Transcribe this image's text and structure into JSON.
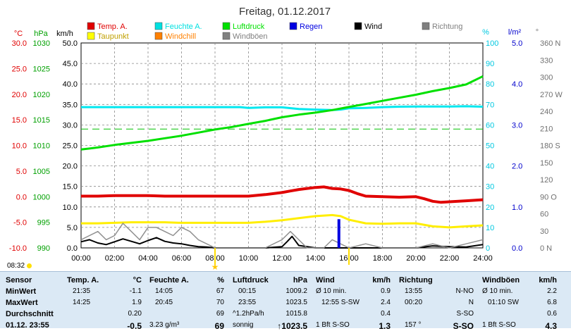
{
  "chart_data": {
    "type": "line",
    "title": "Freitag, 01.12.2017",
    "x_ticks": [
      "00:00",
      "02:00",
      "04:00",
      "06:00",
      "08:00",
      "10:00",
      "12:00",
      "14:00",
      "16:00",
      "18:00",
      "20:00",
      "22:00",
      "24:00"
    ],
    "xlim": [
      "00:00",
      "24:00"
    ],
    "axes": {
      "temp": {
        "label": "°C",
        "ticks": [
          "30.0",
          "25.0",
          "20.0",
          "15.0",
          "10.0",
          "5.0",
          "0.0",
          "-5.0",
          "-10.0"
        ],
        "range": [
          -10,
          30
        ],
        "color": "#e00000"
      },
      "pressure": {
        "label": "hPa",
        "ticks": [
          "1030",
          "1025",
          "1020",
          "1015",
          "1010",
          "1005",
          "1000",
          "995",
          "990"
        ],
        "range": [
          990,
          1030
        ],
        "color": "#00a000"
      },
      "wind": {
        "label": "km/h",
        "ticks": [
          "50.0",
          "45.0",
          "40.0",
          "35.0",
          "30.0",
          "25.0",
          "20.0",
          "15.0",
          "10.0",
          "5.0",
          "0.0"
        ],
        "range": [
          0,
          50
        ],
        "color": "#000000"
      },
      "humidity": {
        "label": "%",
        "ticks": [
          "100",
          "90",
          "80",
          "70",
          "60",
          "50",
          "40",
          "30",
          "20",
          "10",
          "0"
        ],
        "range": [
          0,
          100
        ],
        "color": "#00c8e0"
      },
      "rain": {
        "label": "l/m²",
        "ticks": [
          "5.0",
          "4.0",
          "3.0",
          "2.0",
          "1.0",
          "0.0"
        ],
        "range": [
          0,
          5
        ],
        "color": "#0000cc"
      },
      "direction": {
        "label": "°",
        "ticks": [
          "360 N",
          "330",
          "300",
          "270 W",
          "240",
          "210",
          "180 S",
          "150",
          "120",
          "90 O",
          "60",
          "30",
          "0 N"
        ],
        "range": [
          0,
          360
        ],
        "color": "#707070"
      }
    },
    "legend": [
      {
        "name": "Temp. A.",
        "color": "#e00000"
      },
      {
        "name": "Feuchte A.",
        "color": "#00e0e0"
      },
      {
        "name": "Luftdruck",
        "color": "#00e000"
      },
      {
        "name": "Regen",
        "color": "#0000e0"
      },
      {
        "name": "Wind",
        "color": "#000000"
      },
      {
        "name": "Richtung",
        "color": "#808080"
      },
      {
        "name": "Taupunkt",
        "color": "#ffff00"
      },
      {
        "name": "Windchill",
        "color": "#ff8000"
      },
      {
        "name": "Windböen",
        "color": "#808080"
      }
    ],
    "series": [
      {
        "name": "Temp. A.",
        "axis": "temp",
        "x": [
          0,
          1,
          2,
          3,
          4,
          5,
          6,
          7,
          8,
          9,
          10,
          11,
          12,
          12.5,
          13,
          13.5,
          14,
          14.5,
          15,
          15.5,
          16,
          16.5,
          17,
          18,
          19,
          20,
          20.5,
          21,
          21.5,
          22,
          23,
          24
        ],
        "y": [
          0.1,
          0.1,
          0.2,
          0.2,
          0.2,
          0.1,
          0.1,
          0.1,
          0.1,
          0.1,
          0.1,
          0.4,
          0.8,
          1.1,
          1.4,
          1.6,
          1.8,
          1.9,
          1.6,
          1.5,
          1.2,
          0.6,
          0.1,
          0.0,
          -0.1,
          0.0,
          -0.4,
          -0.9,
          -1.1,
          -1.0,
          -0.8,
          -0.6
        ]
      },
      {
        "name": "Taupunkt",
        "axis": "temp",
        "x": [
          0,
          1,
          2,
          3,
          4,
          5,
          6,
          7,
          8,
          9,
          10,
          11,
          12,
          13,
          14,
          15,
          15.5,
          16,
          17,
          18,
          19,
          20,
          21,
          22,
          23,
          24
        ],
        "y": [
          -5.2,
          -5.2,
          -5.1,
          -5.0,
          -5.0,
          -5.0,
          -5.1,
          -5.1,
          -5.1,
          -5.1,
          -5.1,
          -4.9,
          -4.6,
          -4.2,
          -3.8,
          -3.6,
          -3.8,
          -4.5,
          -5.2,
          -5.3,
          -5.2,
          -5.2,
          -5.8,
          -6.0,
          -5.8,
          -5.6
        ]
      },
      {
        "name": "Feuchte A.",
        "axis": "humidity",
        "x": [
          0,
          2,
          4,
          6,
          8,
          9.5,
          10,
          11,
          12,
          13,
          14,
          15,
          15.5,
          16,
          17,
          18,
          19,
          20,
          21,
          22,
          23,
          24
        ],
        "y": [
          68.7,
          68.7,
          68.7,
          68.7,
          68.7,
          68.7,
          68.3,
          68.6,
          68.6,
          67.8,
          67.5,
          67.3,
          67.5,
          68.1,
          68.3,
          68.7,
          68.9,
          69.0,
          69.0,
          69.0,
          69.1,
          68.9
        ]
      },
      {
        "name": "Luftdruck",
        "axis": "pressure",
        "x": [
          0,
          1,
          2,
          3,
          4,
          5,
          6,
          7,
          8,
          9,
          10,
          11,
          12,
          13,
          14,
          15,
          16,
          17,
          18,
          19,
          20,
          21,
          22,
          23,
          24
        ],
        "y": [
          1009.2,
          1009.6,
          1010.1,
          1010.5,
          1010.9,
          1011.4,
          1011.9,
          1012.5,
          1013.1,
          1013.6,
          1014.2,
          1014.8,
          1015.5,
          1016.0,
          1016.4,
          1016.9,
          1017.5,
          1018.1,
          1018.7,
          1019.3,
          1019.9,
          1020.6,
          1021.2,
          1021.9,
          1023.5
        ]
      },
      {
        "name": "Wind",
        "axis": "wind",
        "x": [
          0,
          0.5,
          1,
          1.5,
          2,
          2.5,
          3,
          3.5,
          4,
          4.5,
          5,
          5.5,
          6,
          6.5,
          7,
          7.5,
          8,
          9,
          10,
          11,
          12,
          12.3,
          12.6,
          13,
          14,
          15,
          16,
          17,
          18,
          19,
          20,
          21,
          22,
          23,
          24
        ],
        "y": [
          1.5,
          2.0,
          1.2,
          0.8,
          1.5,
          2.2,
          1.6,
          1.0,
          1.8,
          2.5,
          1.6,
          1.2,
          1.0,
          0.6,
          0.3,
          0.2,
          0,
          0,
          0,
          0,
          0.3,
          1.5,
          2.8,
          0.6,
          0,
          0,
          0,
          0,
          0,
          0,
          0,
          0.5,
          0.3,
          0.2,
          0.8
        ]
      },
      {
        "name": "Windböen",
        "axis": "wind",
        "x": [
          0,
          0.5,
          1,
          1.5,
          2,
          2.5,
          3,
          3.5,
          4,
          4.5,
          5,
          5.5,
          6,
          6.5,
          7,
          7.5,
          8,
          9,
          10,
          11,
          12,
          12.5,
          13,
          13.5,
          14,
          14.5,
          15,
          16,
          17,
          18,
          19,
          20,
          21,
          22,
          23,
          24
        ],
        "y": [
          2,
          3,
          4,
          2,
          3,
          6,
          4,
          2,
          5,
          5,
          4,
          3,
          5,
          4,
          2,
          1,
          0,
          0,
          0,
          0,
          2,
          4,
          2,
          0,
          0,
          0,
          2,
          0,
          1,
          0,
          0,
          0,
          1,
          0,
          1,
          2
        ]
      },
      {
        "name": "Regen",
        "axis": "rain",
        "x": [
          15.4
        ],
        "y": [
          0.7
        ]
      }
    ],
    "reference_line": {
      "axis": "pressure",
      "value": 1013.2,
      "color": "#00c000",
      "style": "dashed"
    },
    "grid": true
  },
  "clock": "08:32",
  "table": {
    "row_labels": [
      "Sensor",
      "MinWert",
      "MaxWert",
      "Durchschnitt",
      "01.12. 23:55"
    ],
    "columns": [
      {
        "header": "Temp. A.",
        "unit": "°C",
        "rows": [
          [
            "21:35",
            "-1.1"
          ],
          [
            "14:25",
            "1.9"
          ],
          [
            "",
            "0.20"
          ],
          [
            "",
            "-0.5"
          ]
        ]
      },
      {
        "header": "Feuchte A.",
        "unit": "%",
        "rows": [
          [
            "14:05",
            "67"
          ],
          [
            "20:45",
            "70"
          ],
          [
            "",
            "69"
          ],
          [
            "3.23 g/m³",
            "69"
          ]
        ]
      },
      {
        "header": "Luftdruck",
        "unit": "hPa",
        "rows": [
          [
            "00:15",
            "1009.2"
          ],
          [
            "23:55",
            "1023.5"
          ],
          [
            "^1.2hPa/h",
            "1015.8"
          ],
          [
            "sonnig",
            "↑1023.5"
          ]
        ]
      },
      {
        "header": "Wind",
        "unit": "km/h",
        "rows": [
          [
            "Ø 10 min.",
            "0.9"
          ],
          [
            "12:55   S-SW",
            "2.4"
          ],
          [
            "",
            "0.4"
          ],
          [
            "1 Bft S-SO",
            "1.3"
          ]
        ]
      },
      {
        "header": "Richtung",
        "unit": "",
        "rows": [
          [
            "13:55",
            "N-NO"
          ],
          [
            "00:20",
            "N"
          ],
          [
            "",
            "S-SO"
          ],
          [
            "157 °",
            "S-SO"
          ]
        ]
      },
      {
        "header": "Windböen",
        "unit": "km/h",
        "rows": [
          [
            "Ø 10 min.",
            "2.2"
          ],
          [
            "01:10   SW",
            "6.8"
          ],
          [
            "",
            "0.6"
          ],
          [
            "1 Bft S-SO",
            "4.3"
          ]
        ]
      }
    ]
  }
}
